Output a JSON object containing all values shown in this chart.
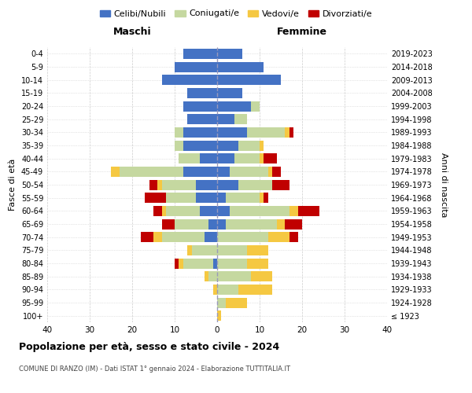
{
  "age_groups": [
    "100+",
    "95-99",
    "90-94",
    "85-89",
    "80-84",
    "75-79",
    "70-74",
    "65-69",
    "60-64",
    "55-59",
    "50-54",
    "45-49",
    "40-44",
    "35-39",
    "30-34",
    "25-29",
    "20-24",
    "15-19",
    "10-14",
    "5-9",
    "0-4"
  ],
  "birth_years": [
    "≤ 1923",
    "1924-1928",
    "1929-1933",
    "1934-1938",
    "1939-1943",
    "1944-1948",
    "1949-1953",
    "1954-1958",
    "1959-1963",
    "1964-1968",
    "1969-1973",
    "1974-1978",
    "1979-1983",
    "1984-1988",
    "1989-1993",
    "1994-1998",
    "1999-2003",
    "2004-2008",
    "2009-2013",
    "2014-2018",
    "2019-2023"
  ],
  "colors": {
    "celibe": "#4472C4",
    "coniugato": "#c5d8a0",
    "vedovo": "#f5c842",
    "divorziato": "#c00000"
  },
  "maschi": {
    "celibe": [
      0,
      0,
      0,
      0,
      1,
      0,
      3,
      2,
      4,
      5,
      5,
      8,
      4,
      8,
      8,
      7,
      8,
      7,
      13,
      10,
      8
    ],
    "coniugato": [
      0,
      0,
      0,
      2,
      7,
      6,
      10,
      8,
      8,
      7,
      8,
      15,
      5,
      2,
      2,
      0,
      0,
      0,
      0,
      0,
      0
    ],
    "vedovo": [
      0,
      0,
      1,
      1,
      1,
      1,
      2,
      0,
      1,
      0,
      1,
      2,
      0,
      0,
      0,
      0,
      0,
      0,
      0,
      0,
      0
    ],
    "divorziato": [
      0,
      0,
      0,
      0,
      1,
      0,
      3,
      3,
      2,
      5,
      2,
      0,
      0,
      0,
      0,
      0,
      0,
      0,
      0,
      0,
      0
    ]
  },
  "femmine": {
    "nubile": [
      0,
      0,
      0,
      0,
      0,
      0,
      0,
      2,
      3,
      2,
      5,
      3,
      4,
      5,
      7,
      4,
      8,
      6,
      15,
      11,
      6
    ],
    "coniugata": [
      0,
      2,
      5,
      8,
      7,
      7,
      12,
      12,
      14,
      8,
      8,
      9,
      6,
      5,
      9,
      3,
      2,
      0,
      0,
      0,
      0
    ],
    "vedova": [
      1,
      5,
      8,
      5,
      5,
      5,
      5,
      2,
      2,
      1,
      0,
      1,
      1,
      1,
      1,
      0,
      0,
      0,
      0,
      0,
      0
    ],
    "divorziata": [
      0,
      0,
      0,
      0,
      0,
      0,
      2,
      4,
      5,
      1,
      4,
      2,
      3,
      0,
      1,
      0,
      0,
      0,
      0,
      0,
      0
    ]
  },
  "xlim": 40,
  "title": "Popolazione per età, sesso e stato civile - 2024",
  "subtitle": "COMUNE DI RANZO (IM) - Dati ISTAT 1° gennaio 2024 - Elaborazione TUTTITALIA.IT",
  "xlabel_left": "Maschi",
  "xlabel_right": "Femmine",
  "ylabel": "Fasce di età",
  "ylabel_right": "Anni di nascita",
  "legend_labels": [
    "Celibi/Nubili",
    "Coniugati/e",
    "Vedovi/e",
    "Divorziati/e"
  ],
  "background_color": "#ffffff",
  "grid_color": "#cccccc"
}
